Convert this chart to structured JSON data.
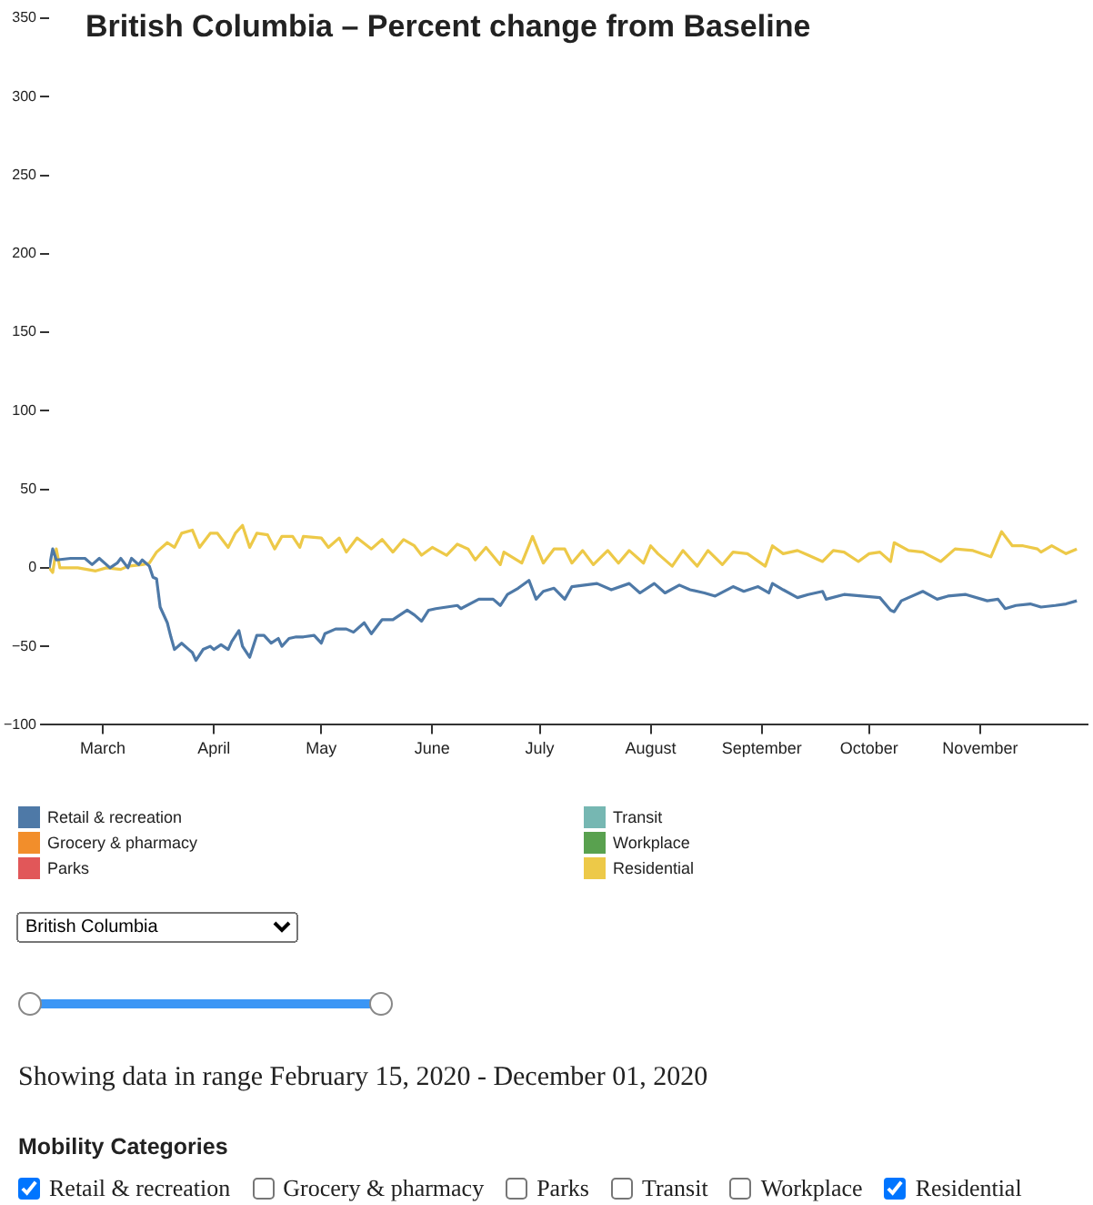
{
  "chart_data": {
    "type": "line",
    "title": "British Columbia – Percent change from Baseline",
    "legend": "bottom",
    "xlim": [
      "2020-02-15",
      "2020-12-01"
    ],
    "xticks": [
      {
        "value": "2020-03-01",
        "label": "March"
      },
      {
        "value": "2020-04-01",
        "label": "April"
      },
      {
        "value": "2020-05-01",
        "label": "May"
      },
      {
        "value": "2020-06-01",
        "label": "June"
      },
      {
        "value": "2020-07-01",
        "label": "July"
      },
      {
        "value": "2020-08-01",
        "label": "August"
      },
      {
        "value": "2020-09-01",
        "label": "September"
      },
      {
        "value": "2020-10-01",
        "label": "October"
      },
      {
        "value": "2020-11-01",
        "label": "November"
      }
    ],
    "ylim": [
      -100,
      350
    ],
    "yticks": [
      {
        "value": -100,
        "label": "−100"
      },
      {
        "value": -50,
        "label": "−50"
      },
      0,
      50,
      100,
      150,
      200,
      250,
      300,
      350
    ],
    "series": [
      {
        "name": "Retail & recreation",
        "color": "#4e79a7",
        "x": [
          "2020-02-15",
          "2020-02-16",
          "2020-02-17",
          "2020-02-21",
          "2020-02-25",
          "2020-02-27",
          "2020-02-29",
          "2020-03-03",
          "2020-03-05",
          "2020-03-06",
          "2020-03-08",
          "2020-03-09",
          "2020-03-11",
          "2020-03-12",
          "2020-03-14",
          "2020-03-15",
          "2020-03-16",
          "2020-03-17",
          "2020-03-19",
          "2020-03-20",
          "2020-03-21",
          "2020-03-23",
          "2020-03-25",
          "2020-03-26",
          "2020-03-27",
          "2020-03-29",
          "2020-03-31",
          "2020-04-01",
          "2020-04-03",
          "2020-04-05",
          "2020-04-06",
          "2020-04-08",
          "2020-04-09",
          "2020-04-11",
          "2020-04-13",
          "2020-04-15",
          "2020-04-17",
          "2020-04-19",
          "2020-04-20",
          "2020-04-22",
          "2020-04-24",
          "2020-04-26",
          "2020-04-29",
          "2020-05-01",
          "2020-05-02",
          "2020-05-05",
          "2020-05-08",
          "2020-05-10",
          "2020-05-13",
          "2020-05-15",
          "2020-05-18",
          "2020-05-21",
          "2020-05-25",
          "2020-05-27",
          "2020-05-29",
          "2020-05-31",
          "2020-06-02",
          "2020-06-08",
          "2020-06-09",
          "2020-06-14",
          "2020-06-18",
          "2020-06-20",
          "2020-06-22",
          "2020-06-25",
          "2020-06-28",
          "2020-06-30",
          "2020-07-02",
          "2020-07-05",
          "2020-07-08",
          "2020-07-10",
          "2020-07-17",
          "2020-07-21",
          "2020-07-26",
          "2020-07-29",
          "2020-08-02",
          "2020-08-05",
          "2020-08-09",
          "2020-08-12",
          "2020-08-16",
          "2020-08-19",
          "2020-08-24",
          "2020-08-27",
          "2020-08-31",
          "2020-09-03",
          "2020-09-04",
          "2020-09-07",
          "2020-09-11",
          "2020-09-14",
          "2020-09-18",
          "2020-09-19",
          "2020-09-24",
          "2020-09-29",
          "2020-10-04",
          "2020-10-07",
          "2020-10-08",
          "2020-10-10",
          "2020-10-16",
          "2020-10-20",
          "2020-10-23",
          "2020-10-28",
          "2020-11-03",
          "2020-11-06",
          "2020-11-08",
          "2020-11-11",
          "2020-11-15",
          "2020-11-18",
          "2020-11-22",
          "2020-11-25",
          "2020-11-28"
        ],
        "values": [
          0,
          12,
          5,
          6,
          6,
          2,
          6,
          0,
          3,
          6,
          0,
          6,
          2,
          5,
          1,
          -6,
          -7,
          -25,
          -35,
          -44,
          -52,
          -48,
          -52,
          -54,
          -59,
          -52,
          -50,
          -52,
          -49,
          -52,
          -47,
          -40,
          -50,
          -57,
          -43,
          -43,
          -48,
          -45,
          -50,
          -45,
          -44,
          -44,
          -43,
          -48,
          -42,
          -39,
          -39,
          -41,
          -35,
          -42,
          -33,
          -33,
          -27,
          -30,
          -34,
          -27,
          -26,
          -24,
          -26,
          -20,
          -20,
          -24,
          -17,
          -13,
          -8,
          -20,
          -15,
          -13,
          -20,
          -12,
          -10,
          -14,
          -10,
          -16,
          -10,
          -16,
          -11,
          -14,
          -16,
          -18,
          -12,
          -15,
          -12,
          -16,
          -10,
          -14,
          -19,
          -17,
          -15,
          -20,
          -17,
          -18,
          -19,
          -27,
          -28,
          -21,
          -15,
          -20,
          -18,
          -17,
          -21,
          -20,
          -26,
          -24,
          -23,
          -25,
          -24,
          -23,
          -21
        ]
      },
      {
        "name": "Grocery & pharmacy",
        "color": "#f28e2b"
      },
      {
        "name": "Parks",
        "color": "#e15759"
      },
      {
        "name": "Transit",
        "color": "#76b7b2"
      },
      {
        "name": "Workplace",
        "color": "#59a14f"
      },
      {
        "name": "Residential",
        "color": "#edc948",
        "x": [
          "2020-02-15",
          "2020-02-16",
          "2020-02-17",
          "2020-02-18",
          "2020-02-23",
          "2020-02-28",
          "2020-03-02",
          "2020-03-06",
          "2020-03-08",
          "2020-03-12",
          "2020-03-14",
          "2020-03-16",
          "2020-03-19",
          "2020-03-21",
          "2020-03-23",
          "2020-03-26",
          "2020-03-28",
          "2020-03-31",
          "2020-04-02",
          "2020-04-05",
          "2020-04-07",
          "2020-04-09",
          "2020-04-11",
          "2020-04-13",
          "2020-04-16",
          "2020-04-18",
          "2020-04-20",
          "2020-04-23",
          "2020-04-25",
          "2020-04-26",
          "2020-05-01",
          "2020-05-03",
          "2020-05-06",
          "2020-05-08",
          "2020-05-11",
          "2020-05-15",
          "2020-05-18",
          "2020-05-21",
          "2020-05-24",
          "2020-05-27",
          "2020-05-29",
          "2020-06-01",
          "2020-06-05",
          "2020-06-08",
          "2020-06-11",
          "2020-06-13",
          "2020-06-16",
          "2020-06-20",
          "2020-06-21",
          "2020-06-26",
          "2020-06-29",
          "2020-07-02",
          "2020-07-05",
          "2020-07-08",
          "2020-07-10",
          "2020-07-13",
          "2020-07-16",
          "2020-07-20",
          "2020-07-23",
          "2020-07-26",
          "2020-07-30",
          "2020-08-01",
          "2020-08-03",
          "2020-08-07",
          "2020-08-10",
          "2020-08-14",
          "2020-08-17",
          "2020-08-21",
          "2020-08-24",
          "2020-08-28",
          "2020-09-02",
          "2020-09-04",
          "2020-09-07",
          "2020-09-11",
          "2020-09-14",
          "2020-09-18",
          "2020-09-21",
          "2020-09-24",
          "2020-09-28",
          "2020-10-01",
          "2020-10-04",
          "2020-10-07",
          "2020-10-08",
          "2020-10-12",
          "2020-10-16",
          "2020-10-21",
          "2020-10-25",
          "2020-10-30",
          "2020-11-04",
          "2020-11-07",
          "2020-11-10",
          "2020-11-13",
          "2020-11-17",
          "2020-11-18",
          "2020-11-21",
          "2020-11-25",
          "2020-11-28"
        ],
        "values": [
          0,
          -3,
          12,
          0,
          0,
          -2,
          0,
          -1,
          1,
          2,
          3,
          10,
          16,
          13,
          22,
          24,
          13,
          22,
          22,
          13,
          22,
          27,
          13,
          22,
          21,
          12,
          20,
          20,
          13,
          20,
          19,
          13,
          19,
          10,
          19,
          12,
          18,
          10,
          18,
          14,
          8,
          13,
          8,
          15,
          12,
          5,
          13,
          2,
          10,
          3,
          20,
          3,
          12,
          12,
          3,
          11,
          2,
          11,
          3,
          11,
          3,
          14,
          9,
          1,
          11,
          1,
          11,
          2,
          10,
          9,
          1,
          14,
          9,
          11,
          8,
          4,
          11,
          10,
          4,
          9,
          10,
          4,
          16,
          11,
          10,
          4,
          12,
          11,
          7,
          23,
          14,
          14,
          12,
          10,
          14,
          9,
          12
        ]
      }
    ],
    "annotations": [
      "British Columbia",
      "Showing data in range February 15, 2020 - December 01, 2020",
      "Mobility Categories"
    ]
  }
}
